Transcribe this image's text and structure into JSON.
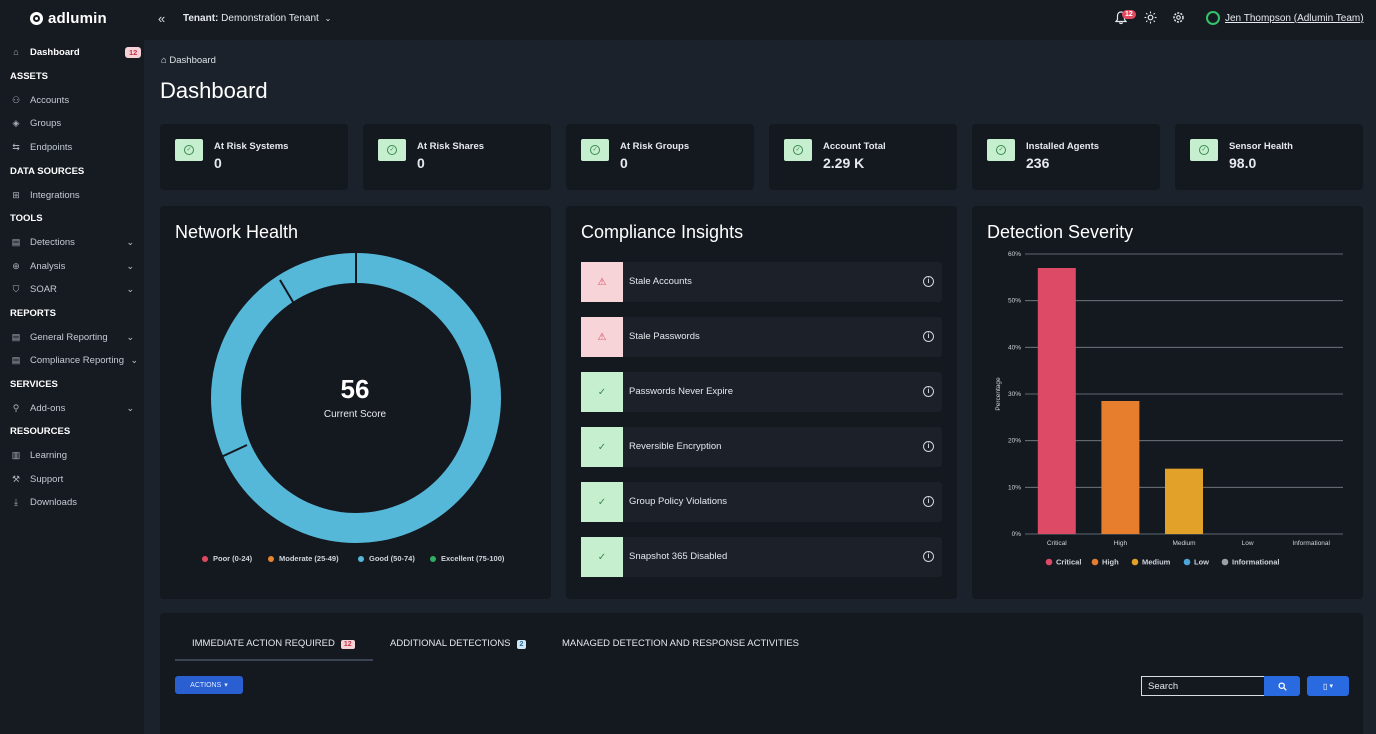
{
  "topbar": {
    "logo_text": "adlumin",
    "tenant_label": "Tenant:",
    "tenant_name": "Demonstration Tenant",
    "notifications_count": "12",
    "user_name": "Jen Thompson (Adlumin Team)"
  },
  "sidebar": {
    "dashboard": {
      "label": "Dashboard",
      "badge": "12"
    },
    "headers": {
      "assets": "ASSETS",
      "data_sources": "DATA SOURCES",
      "tools": "TOOLS",
      "reports": "REPORTS",
      "services": "SERVICES",
      "resources": "RESOURCES"
    },
    "items": {
      "accounts": "Accounts",
      "groups": "Groups",
      "endpoints": "Endpoints",
      "integrations": "Integrations",
      "detections": "Detections",
      "analysis": "Analysis",
      "soar": "SOAR",
      "general_reporting": "General Reporting",
      "compliance_reporting": "Compliance Reporting",
      "addons": "Add-ons",
      "learning": "Learning",
      "support": "Support",
      "downloads": "Downloads"
    }
  },
  "breadcrumb": "Dashboard",
  "page_title": "Dashboard",
  "stats": [
    {
      "label": "At Risk Systems",
      "value": "0"
    },
    {
      "label": "At Risk Shares",
      "value": "0"
    },
    {
      "label": "At Risk Groups",
      "value": "0"
    },
    {
      "label": "Account Total",
      "value": "2.29 K"
    },
    {
      "label": "Installed Agents",
      "value": "236"
    },
    {
      "label": "Sensor Health",
      "value": "98.0"
    }
  ],
  "network_health": {
    "title": "Network Health",
    "score": "56",
    "score_label": "Current Score",
    "legend": [
      {
        "label": "Poor (0-24)",
        "color": "#e04a5f"
      },
      {
        "label": "Moderate (25-49)",
        "color": "#e8862e"
      },
      {
        "label": "Good (50-74)",
        "color": "#56b8d9"
      },
      {
        "label": "Excellent (75-100)",
        "color": "#2fb061"
      }
    ],
    "ring_color": "#56b8d9"
  },
  "compliance": {
    "title": "Compliance Insights",
    "items": [
      {
        "label": "Stale Accounts",
        "status": "warning"
      },
      {
        "label": "Stale Passwords",
        "status": "warning"
      },
      {
        "label": "Passwords Never Expire",
        "status": "ok"
      },
      {
        "label": "Reversible Encryption",
        "status": "ok"
      },
      {
        "label": "Group Policy Violations",
        "status": "ok"
      },
      {
        "label": "Snapshot 365 Disabled",
        "status": "ok"
      }
    ]
  },
  "detection_severity": {
    "title": "Detection Severity"
  },
  "chart_data": {
    "type": "bar",
    "categories": [
      "Critical",
      "High",
      "Medium",
      "Low",
      "Informational"
    ],
    "values": [
      57,
      28.5,
      14,
      0,
      0
    ],
    "ylim": [
      0,
      60
    ],
    "yticks": [
      "0%",
      "10%",
      "20%",
      "30%",
      "40%",
      "50%",
      "60%"
    ],
    "ytick_values": [
      0,
      10,
      20,
      30,
      40,
      50,
      60
    ],
    "ylabel": "Percentage",
    "colors": [
      "#dc4a66",
      "#e67e2e",
      "#e2a128",
      "#4aa5d8",
      "#9aa0a6"
    ],
    "legend": [
      "Critical",
      "High",
      "Medium",
      "Low",
      "Informational"
    ],
    "legend_position": "bottom",
    "grid": true
  },
  "tabs": [
    {
      "label": "IMMEDIATE ACTION REQUIRED",
      "badge": "12"
    },
    {
      "label": "ADDITIONAL DETECTIONS",
      "badge": "2"
    },
    {
      "label": "MANAGED DETECTION AND RESPONSE ACTIVITIES",
      "badge": ""
    }
  ],
  "actions_label": "ACTIONS",
  "search_value": "Search"
}
